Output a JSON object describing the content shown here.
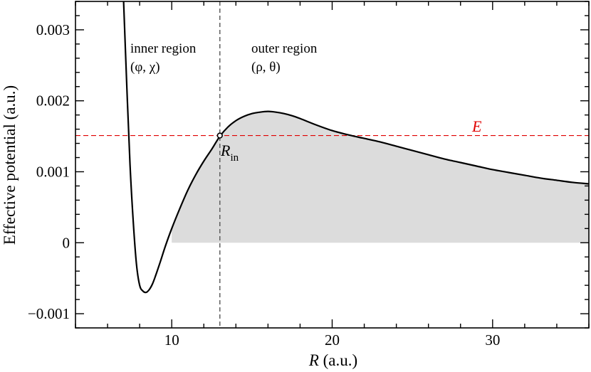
{
  "chart_data": {
    "type": "line",
    "xlabel_symbol": "R",
    "xlabel_unit": " (a.u.)",
    "ylabel": "Effective potential (a.u.)",
    "xlim": [
      4,
      36
    ],
    "ylim": [
      -0.0012,
      0.0034
    ],
    "x_ticks": [
      10,
      20,
      30
    ],
    "x_tick_labels": [
      "10",
      "20",
      "30"
    ],
    "y_ticks": [
      -0.001,
      0,
      0.001,
      0.002,
      0.003
    ],
    "y_tick_labels": [
      "−0.001",
      "0",
      "0.001",
      "0.002",
      "0.003"
    ],
    "grid": false,
    "series": [
      {
        "x": [
          7.0,
          7.2,
          7.4,
          7.6,
          7.8,
          8.0,
          8.2,
          8.4,
          8.6,
          8.8,
          9.0,
          9.3,
          9.6,
          10.0,
          10.5,
          11.0,
          11.5,
          12.0,
          12.5,
          13.0,
          13.5,
          14.0,
          14.5,
          15.0,
          15.5,
          16.0,
          16.5,
          17.0,
          17.5,
          18.0,
          19.0,
          20.0,
          21.0,
          22.0,
          23.0,
          24.0,
          25.0,
          26.0,
          27.0,
          28.0,
          29.0,
          30.0,
          31.0,
          32.0,
          33.0,
          34.0,
          35.0,
          36.0
        ],
        "values": [
          0.0034,
          0.0022,
          0.0011,
          0.0003,
          -0.0003,
          -0.0006,
          -0.00068,
          -0.0007,
          -0.00066,
          -0.00058,
          -0.00046,
          -0.00026,
          -5e-05,
          0.0002,
          0.00048,
          0.00074,
          0.00096,
          0.00115,
          0.00132,
          0.0015,
          0.00163,
          0.00172,
          0.00178,
          0.00182,
          0.00184,
          0.00185,
          0.00184,
          0.00182,
          0.00179,
          0.00175,
          0.00166,
          0.00158,
          0.00152,
          0.00147,
          0.00142,
          0.00136,
          0.0013,
          0.00124,
          0.00118,
          0.00113,
          0.00108,
          0.00103,
          0.00099,
          0.00095,
          0.00091,
          0.00088,
          0.00085,
          0.00083
        ]
      }
    ],
    "energy_level": 0.00151,
    "energy_label": "E",
    "boundary_x": 13.0,
    "boundary_label": "R",
    "boundary_label_sub": "in",
    "shaded_region_x_start": 10.0,
    "annotations": {
      "inner_line1": "inner region",
      "inner_line2": "(φ, χ)",
      "outer_line1": "outer region",
      "outer_line2": "(ρ, θ)"
    },
    "colors": {
      "curve": "#000000",
      "energy_line": "#e00000",
      "boundary_line": "#555555",
      "shade": "#dcdcdc"
    }
  }
}
